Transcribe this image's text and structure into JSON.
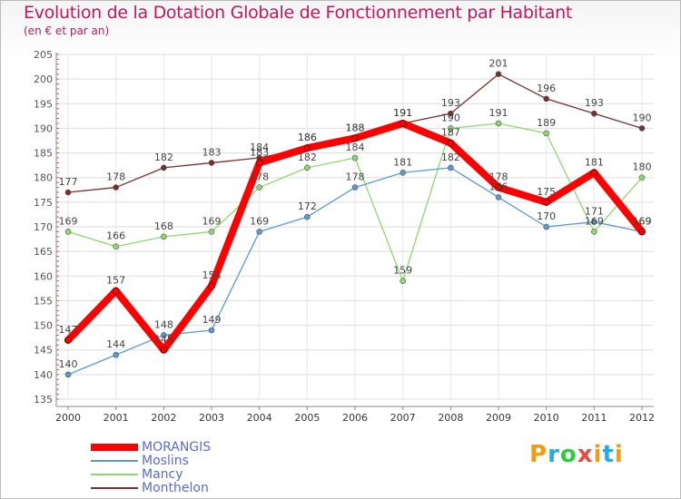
{
  "title": "Evolution de la Dotation Globale de Fonctionnement par Habitant",
  "subtitle": "(en € et par an)",
  "brand": {
    "text": "Proxiti",
    "colors": [
      "#f39c12",
      "#27a9e1",
      "#2ecc40",
      "#e74c3c",
      "#f39c12",
      "#27a9e1",
      "#f39c12"
    ]
  },
  "chart_data": {
    "type": "line",
    "title": "Evolution de la Dotation Globale de Fonctionnement par Habitant",
    "subtitle": "(en € et par an)",
    "xlabel": "",
    "ylabel": "",
    "ylim": [
      135,
      205
    ],
    "yticks": [
      135,
      140,
      145,
      150,
      155,
      160,
      165,
      170,
      175,
      180,
      185,
      190,
      195,
      200,
      205
    ],
    "x": [
      "2000",
      "2001",
      "2002",
      "2003",
      "2004",
      "2005",
      "2006",
      "2007",
      "2008",
      "2009",
      "2010",
      "2011",
      "2012"
    ],
    "grid": true,
    "legend_position": "bottom-left",
    "series": [
      {
        "name": "Monthelon",
        "color": "#7b2e2e",
        "values": [
          177,
          178,
          182,
          183,
          184,
          186,
          188,
          191,
          193,
          201,
          196,
          193,
          190
        ]
      },
      {
        "name": "Mancy",
        "color": "#8ed86b",
        "values": [
          169,
          166,
          168,
          169,
          178,
          182,
          184,
          159,
          190,
          191,
          189,
          169,
          180
        ]
      },
      {
        "name": "Moslins",
        "color": "#5a9bd4",
        "values": [
          140,
          144,
          148,
          149,
          169,
          172,
          178,
          181,
          182,
          176,
          170,
          171,
          169
        ]
      },
      {
        "name": "MORANGIS",
        "color": "#ff0000",
        "values": [
          147,
          157,
          145,
          158,
          183,
          186,
          188,
          191,
          187,
          178,
          175,
          181,
          169
        ]
      }
    ],
    "legend_order": [
      "MORANGIS",
      "Moslins",
      "Mancy",
      "Monthelon"
    ]
  }
}
